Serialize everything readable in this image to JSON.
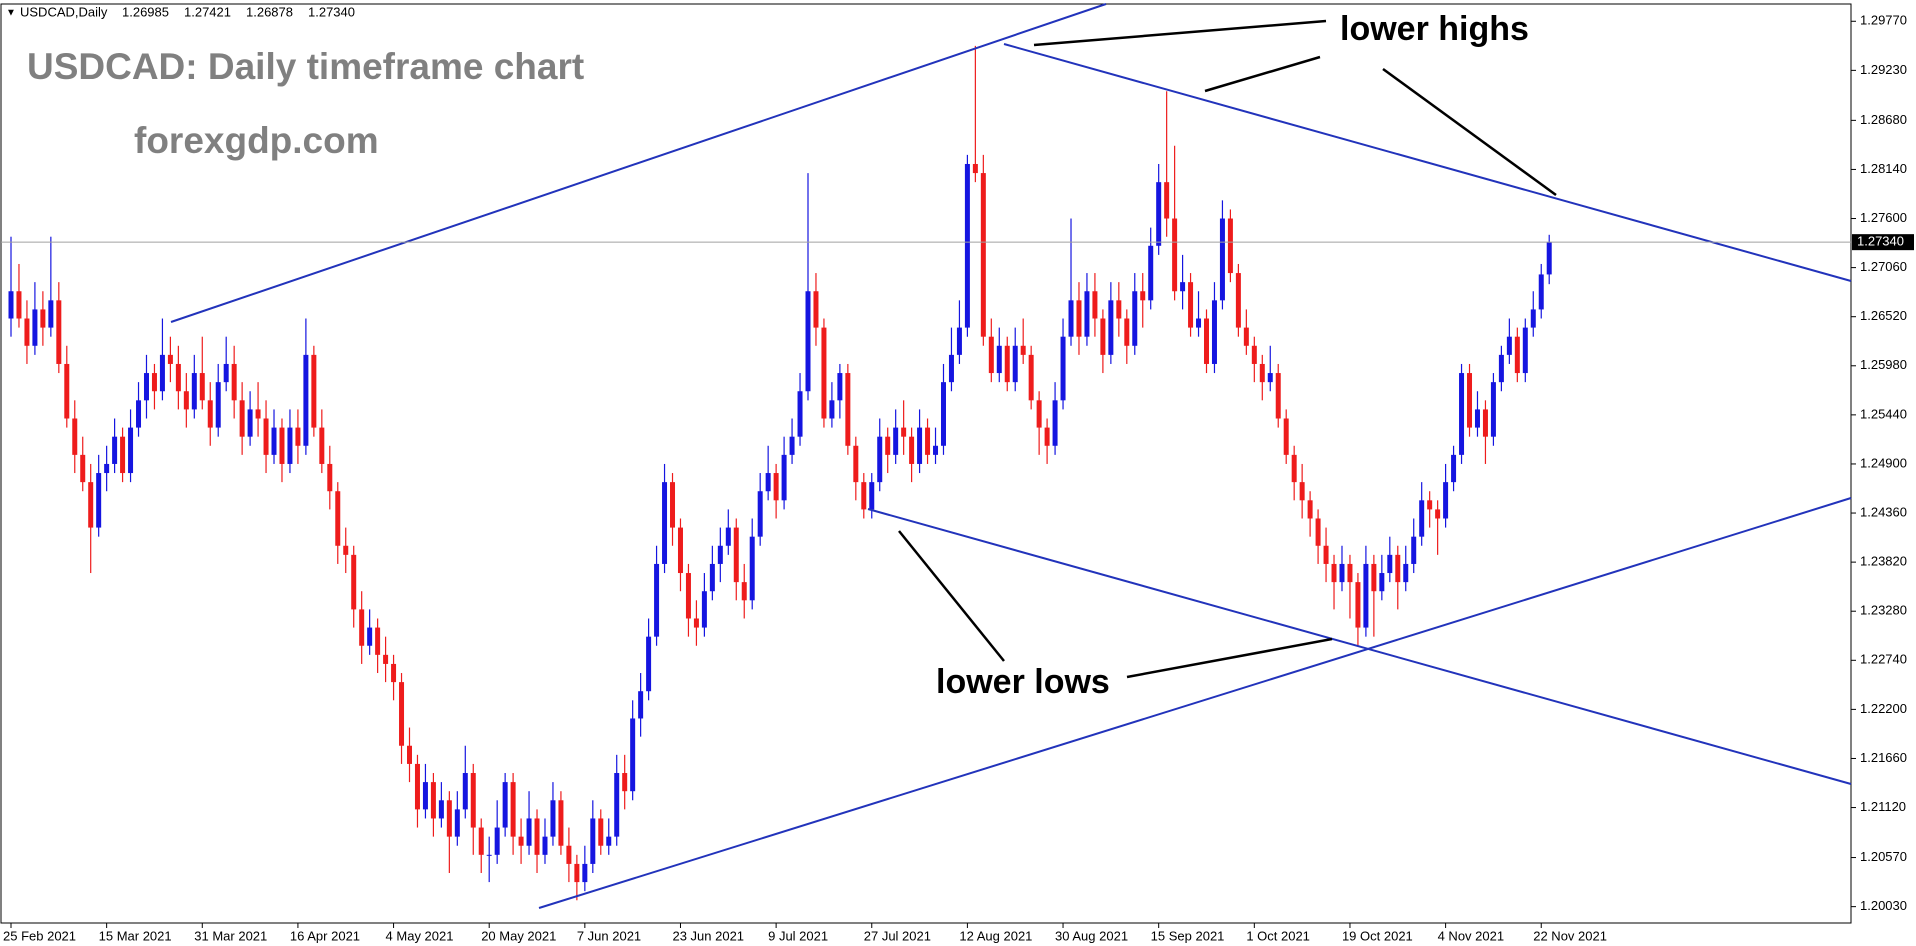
{
  "chart_data": {
    "type": "candlestick",
    "symbol": "USDCAD,Daily",
    "header_values": [
      {
        "value": 1.26985,
        "label": "1.26985"
      },
      {
        "value": 1.27421,
        "label": "1.27421"
      },
      {
        "value": 1.26878,
        "label": "1.26878"
      },
      {
        "value": 1.2734,
        "label": "1.27340"
      }
    ],
    "title": "USDCAD: Daily timeframe chart",
    "subtitle": "forexgdp.com",
    "annotations": [
      "lower highs",
      "lower lows"
    ],
    "up_color": "#1515e0",
    "down_color": "#ee1c1c",
    "last_price": {
      "value": 1.2734,
      "label": "1.27340"
    },
    "ylim": [
      1.1985,
      1.2996
    ],
    "yticks": [
      {
        "value": 1.2977,
        "label": "1.29770"
      },
      {
        "value": 1.2923,
        "label": "1.29230"
      },
      {
        "value": 1.2868,
        "label": "1.28680"
      },
      {
        "value": 1.2814,
        "label": "1.28140"
      },
      {
        "value": 1.276,
        "label": "1.27600"
      },
      {
        "value": 1.2706,
        "label": "1.27060"
      },
      {
        "value": 1.2652,
        "label": "1.26520"
      },
      {
        "value": 1.2598,
        "label": "1.25980"
      },
      {
        "value": 1.2544,
        "label": "1.25440"
      },
      {
        "value": 1.249,
        "label": "1.24900"
      },
      {
        "value": 1.2436,
        "label": "1.24360"
      },
      {
        "value": 1.2382,
        "label": "1.23820"
      },
      {
        "value": 1.2328,
        "label": "1.23280"
      },
      {
        "value": 1.2274,
        "label": "1.22740"
      },
      {
        "value": 1.222,
        "label": "1.22200"
      },
      {
        "value": 1.2166,
        "label": "1.21660"
      },
      {
        "value": 1.2112,
        "label": "1.21120"
      },
      {
        "value": 1.2057,
        "label": "1.20570"
      },
      {
        "value": 1.2003,
        "label": "1.20030"
      }
    ],
    "categories": [
      "25 Feb 2021",
      null,
      null,
      null,
      null,
      null,
      null,
      null,
      null,
      null,
      null,
      null,
      "15 Mar 2021",
      null,
      null,
      null,
      null,
      null,
      null,
      null,
      null,
      null,
      null,
      null,
      "31 Mar 2021",
      null,
      null,
      null,
      null,
      null,
      null,
      null,
      null,
      null,
      null,
      null,
      "16 Apr 2021",
      null,
      null,
      null,
      null,
      null,
      null,
      null,
      null,
      null,
      null,
      null,
      "4 May 2021",
      null,
      null,
      null,
      null,
      null,
      null,
      null,
      null,
      null,
      null,
      null,
      "20 May 2021",
      null,
      null,
      null,
      null,
      null,
      null,
      null,
      null,
      null,
      null,
      null,
      "7 Jun 2021",
      null,
      null,
      null,
      null,
      null,
      null,
      null,
      null,
      null,
      null,
      null,
      "23 Jun 2021",
      null,
      null,
      null,
      null,
      null,
      null,
      null,
      null,
      null,
      null,
      null,
      "9 Jul 2021",
      null,
      null,
      null,
      null,
      null,
      null,
      null,
      null,
      null,
      null,
      null,
      "27 Jul 2021",
      null,
      null,
      null,
      null,
      null,
      null,
      null,
      null,
      null,
      null,
      null,
      "12 Aug 2021",
      null,
      null,
      null,
      null,
      null,
      null,
      null,
      null,
      null,
      null,
      null,
      "30 Aug 2021",
      null,
      null,
      null,
      null,
      null,
      null,
      null,
      null,
      null,
      null,
      null,
      "15 Sep 2021",
      null,
      null,
      null,
      null,
      null,
      null,
      null,
      null,
      null,
      null,
      null,
      "1 Oct 2021",
      null,
      null,
      null,
      null,
      null,
      null,
      null,
      null,
      null,
      null,
      null,
      "19 Oct 2021",
      null,
      null,
      null,
      null,
      null,
      null,
      null,
      null,
      null,
      null,
      null,
      "4 Nov 2021",
      null,
      null,
      null,
      null,
      null,
      null,
      null,
      null,
      null,
      null,
      null,
      "22 Nov 2021",
      null
    ],
    "candles": [
      [
        1.265,
        1.274,
        1.263,
        1.268
      ],
      [
        1.268,
        1.271,
        1.264,
        1.265
      ],
      [
        1.265,
        1.267,
        1.26,
        1.262
      ],
      [
        1.262,
        1.269,
        1.261,
        1.266
      ],
      [
        1.266,
        1.268,
        1.262,
        1.264
      ],
      [
        1.264,
        1.274,
        1.263,
        1.267
      ],
      [
        1.267,
        1.269,
        1.259,
        1.26
      ],
      [
        1.26,
        1.262,
        1.253,
        1.254
      ],
      [
        1.254,
        1.256,
        1.248,
        1.25
      ],
      [
        1.25,
        1.252,
        1.246,
        1.247
      ],
      [
        1.247,
        1.249,
        1.237,
        1.242
      ],
      [
        1.242,
        1.25,
        1.241,
        1.248
      ],
      [
        1.248,
        1.251,
        1.246,
        1.249
      ],
      [
        1.249,
        1.254,
        1.248,
        1.252
      ],
      [
        1.252,
        1.253,
        1.247,
        1.248
      ],
      [
        1.248,
        1.255,
        1.247,
        1.253
      ],
      [
        1.253,
        1.258,
        1.252,
        1.256
      ],
      [
        1.256,
        1.261,
        1.254,
        1.259
      ],
      [
        1.259,
        1.26,
        1.255,
        1.257
      ],
      [
        1.257,
        1.265,
        1.256,
        1.261
      ],
      [
        1.261,
        1.263,
        1.258,
        1.26
      ],
      [
        1.26,
        1.262,
        1.255,
        1.257
      ],
      [
        1.257,
        1.259,
        1.253,
        1.255
      ],
      [
        1.255,
        1.261,
        1.254,
        1.259
      ],
      [
        1.259,
        1.263,
        1.255,
        1.256
      ],
      [
        1.256,
        1.258,
        1.251,
        1.253
      ],
      [
        1.253,
        1.26,
        1.252,
        1.258
      ],
      [
        1.258,
        1.263,
        1.257,
        1.26
      ],
      [
        1.26,
        1.262,
        1.254,
        1.256
      ],
      [
        1.256,
        1.258,
        1.25,
        1.252
      ],
      [
        1.252,
        1.257,
        1.251,
        1.255
      ],
      [
        1.255,
        1.258,
        1.252,
        1.254
      ],
      [
        1.254,
        1.256,
        1.248,
        1.25
      ],
      [
        1.25,
        1.255,
        1.249,
        1.253
      ],
      [
        1.253,
        1.254,
        1.247,
        1.249
      ],
      [
        1.249,
        1.255,
        1.248,
        1.253
      ],
      [
        1.253,
        1.255,
        1.249,
        1.251
      ],
      [
        1.251,
        1.265,
        1.25,
        1.261
      ],
      [
        1.261,
        1.262,
        1.252,
        1.253
      ],
      [
        1.253,
        1.255,
        1.248,
        1.249
      ],
      [
        1.249,
        1.251,
        1.244,
        1.246
      ],
      [
        1.246,
        1.247,
        1.238,
        1.24
      ],
      [
        1.24,
        1.242,
        1.237,
        1.239
      ],
      [
        1.239,
        1.24,
        1.231,
        1.233
      ],
      [
        1.233,
        1.235,
        1.227,
        1.229
      ],
      [
        1.229,
        1.233,
        1.228,
        1.231
      ],
      [
        1.231,
        1.232,
        1.226,
        1.228
      ],
      [
        1.228,
        1.23,
        1.225,
        1.227
      ],
      [
        1.227,
        1.228,
        1.223,
        1.225
      ],
      [
        1.225,
        1.226,
        1.216,
        1.218
      ],
      [
        1.218,
        1.22,
        1.214,
        1.216
      ],
      [
        1.216,
        1.217,
        1.209,
        1.211
      ],
      [
        1.211,
        1.216,
        1.21,
        1.214
      ],
      [
        1.214,
        1.215,
        1.208,
        1.21
      ],
      [
        1.21,
        1.214,
        1.209,
        1.212
      ],
      [
        1.212,
        1.213,
        1.204,
        1.208
      ],
      [
        1.208,
        1.213,
        1.207,
        1.211
      ],
      [
        1.211,
        1.218,
        1.21,
        1.215
      ],
      [
        1.215,
        1.216,
        1.206,
        1.209
      ],
      [
        1.209,
        1.21,
        1.204,
        1.206
      ],
      [
        1.206,
        1.208,
        1.203,
        1.206
      ],
      [
        1.206,
        1.212,
        1.205,
        1.209
      ],
      [
        1.209,
        1.215,
        1.208,
        1.214
      ],
      [
        1.214,
        1.215,
        1.206,
        1.208
      ],
      [
        1.208,
        1.21,
        1.205,
        1.207
      ],
      [
        1.207,
        1.213,
        1.206,
        1.21
      ],
      [
        1.21,
        1.211,
        1.204,
        1.206
      ],
      [
        1.206,
        1.21,
        1.205,
        1.208
      ],
      [
        1.208,
        1.214,
        1.207,
        1.212
      ],
      [
        1.212,
        1.213,
        1.206,
        1.207
      ],
      [
        1.207,
        1.209,
        1.203,
        1.205
      ],
      [
        1.205,
        1.206,
        1.201,
        1.203
      ],
      [
        1.203,
        1.207,
        1.202,
        1.205
      ],
      [
        1.205,
        1.212,
        1.204,
        1.21
      ],
      [
        1.21,
        1.211,
        1.206,
        1.207
      ],
      [
        1.207,
        1.21,
        1.206,
        1.208
      ],
      [
        1.208,
        1.217,
        1.207,
        1.215
      ],
      [
        1.215,
        1.217,
        1.211,
        1.213
      ],
      [
        1.213,
        1.223,
        1.212,
        1.221
      ],
      [
        1.221,
        1.226,
        1.219,
        1.224
      ],
      [
        1.224,
        1.232,
        1.223,
        1.23
      ],
      [
        1.23,
        1.24,
        1.229,
        1.238
      ],
      [
        1.238,
        1.249,
        1.237,
        1.247
      ],
      [
        1.247,
        1.248,
        1.24,
        1.242
      ],
      [
        1.242,
        1.243,
        1.235,
        1.237
      ],
      [
        1.237,
        1.238,
        1.23,
        1.232
      ],
      [
        1.232,
        1.234,
        1.229,
        1.231
      ],
      [
        1.231,
        1.237,
        1.23,
        1.235
      ],
      [
        1.235,
        1.24,
        1.234,
        1.238
      ],
      [
        1.238,
        1.242,
        1.236,
        1.24
      ],
      [
        1.24,
        1.244,
        1.239,
        1.242
      ],
      [
        1.242,
        1.243,
        1.234,
        1.236
      ],
      [
        1.236,
        1.238,
        1.232,
        1.234
      ],
      [
        1.234,
        1.243,
        1.233,
        1.241
      ],
      [
        1.241,
        1.248,
        1.24,
        1.246
      ],
      [
        1.246,
        1.251,
        1.245,
        1.248
      ],
      [
        1.248,
        1.249,
        1.243,
        1.245
      ],
      [
        1.245,
        1.252,
        1.244,
        1.25
      ],
      [
        1.25,
        1.254,
        1.249,
        1.252
      ],
      [
        1.252,
        1.259,
        1.251,
        1.257
      ],
      [
        1.257,
        1.281,
        1.256,
        1.268
      ],
      [
        1.268,
        1.27,
        1.262,
        1.264
      ],
      [
        1.264,
        1.265,
        1.253,
        1.254
      ],
      [
        1.254,
        1.258,
        1.253,
        1.256
      ],
      [
        1.256,
        1.26,
        1.254,
        1.259
      ],
      [
        1.259,
        1.26,
        1.25,
        1.251
      ],
      [
        1.251,
        1.252,
        1.245,
        1.247
      ],
      [
        1.247,
        1.248,
        1.243,
        1.244
      ],
      [
        1.244,
        1.248,
        1.243,
        1.247
      ],
      [
        1.247,
        1.254,
        1.246,
        1.252
      ],
      [
        1.252,
        1.253,
        1.248,
        1.25
      ],
      [
        1.25,
        1.255,
        1.249,
        1.253
      ],
      [
        1.253,
        1.256,
        1.25,
        1.252
      ],
      [
        1.252,
        1.253,
        1.247,
        1.249
      ],
      [
        1.249,
        1.255,
        1.248,
        1.253
      ],
      [
        1.253,
        1.254,
        1.249,
        1.25
      ],
      [
        1.25,
        1.253,
        1.249,
        1.251
      ],
      [
        1.251,
        1.26,
        1.25,
        1.258
      ],
      [
        1.258,
        1.264,
        1.257,
        1.261
      ],
      [
        1.261,
        1.267,
        1.26,
        1.264
      ],
      [
        1.264,
        1.283,
        1.263,
        1.282
      ],
      [
        1.282,
        1.295,
        1.28,
        1.281
      ],
      [
        1.281,
        1.283,
        1.262,
        1.263
      ],
      [
        1.263,
        1.265,
        1.258,
        1.259
      ],
      [
        1.259,
        1.264,
        1.258,
        1.262
      ],
      [
        1.262,
        1.263,
        1.257,
        1.258
      ],
      [
        1.258,
        1.264,
        1.257,
        1.262
      ],
      [
        1.262,
        1.265,
        1.26,
        1.261
      ],
      [
        1.261,
        1.262,
        1.255,
        1.256
      ],
      [
        1.256,
        1.257,
        1.25,
        1.253
      ],
      [
        1.253,
        1.254,
        1.249,
        1.251
      ],
      [
        1.251,
        1.258,
        1.25,
        1.256
      ],
      [
        1.256,
        1.265,
        1.255,
        1.263
      ],
      [
        1.263,
        1.276,
        1.262,
        1.267
      ],
      [
        1.267,
        1.269,
        1.261,
        1.263
      ],
      [
        1.263,
        1.27,
        1.262,
        1.268
      ],
      [
        1.268,
        1.27,
        1.263,
        1.265
      ],
      [
        1.265,
        1.266,
        1.259,
        1.261
      ],
      [
        1.261,
        1.269,
        1.26,
        1.267
      ],
      [
        1.267,
        1.269,
        1.263,
        1.265
      ],
      [
        1.265,
        1.266,
        1.26,
        1.262
      ],
      [
        1.262,
        1.27,
        1.261,
        1.268
      ],
      [
        1.268,
        1.27,
        1.264,
        1.267
      ],
      [
        1.267,
        1.275,
        1.266,
        1.273
      ],
      [
        1.273,
        1.282,
        1.272,
        1.28
      ],
      [
        1.28,
        1.29,
        1.274,
        1.276
      ],
      [
        1.276,
        1.284,
        1.267,
        1.268
      ],
      [
        1.268,
        1.272,
        1.266,
        1.269
      ],
      [
        1.269,
        1.27,
        1.263,
        1.264
      ],
      [
        1.264,
        1.268,
        1.263,
        1.265
      ],
      [
        1.265,
        1.266,
        1.259,
        1.26
      ],
      [
        1.26,
        1.269,
        1.259,
        1.267
      ],
      [
        1.267,
        1.278,
        1.266,
        1.276
      ],
      [
        1.276,
        1.277,
        1.269,
        1.27
      ],
      [
        1.27,
        1.271,
        1.263,
        1.264
      ],
      [
        1.264,
        1.266,
        1.261,
        1.262
      ],
      [
        1.262,
        1.263,
        1.258,
        1.26
      ],
      [
        1.26,
        1.261,
        1.256,
        1.258
      ],
      [
        1.258,
        1.262,
        1.257,
        1.259
      ],
      [
        1.259,
        1.26,
        1.253,
        1.254
      ],
      [
        1.254,
        1.255,
        1.249,
        1.25
      ],
      [
        1.25,
        1.251,
        1.245,
        1.247
      ],
      [
        1.247,
        1.249,
        1.243,
        1.245
      ],
      [
        1.245,
        1.246,
        1.241,
        1.243
      ],
      [
        1.243,
        1.244,
        1.238,
        1.24
      ],
      [
        1.24,
        1.242,
        1.236,
        1.238
      ],
      [
        1.238,
        1.239,
        1.233,
        1.236
      ],
      [
        1.236,
        1.24,
        1.235,
        1.238
      ],
      [
        1.238,
        1.239,
        1.232,
        1.236
      ],
      [
        1.236,
        1.237,
        1.229,
        1.231
      ],
      [
        1.231,
        1.24,
        1.23,
        1.238
      ],
      [
        1.238,
        1.239,
        1.23,
        1.235
      ],
      [
        1.235,
        1.239,
        1.234,
        1.237
      ],
      [
        1.237,
        1.241,
        1.236,
        1.239
      ],
      [
        1.239,
        1.24,
        1.233,
        1.236
      ],
      [
        1.236,
        1.24,
        1.235,
        1.238
      ],
      [
        1.238,
        1.243,
        1.237,
        1.241
      ],
      [
        1.241,
        1.247,
        1.24,
        1.245
      ],
      [
        1.245,
        1.246,
        1.242,
        1.244
      ],
      [
        1.244,
        1.245,
        1.239,
        1.243
      ],
      [
        1.243,
        1.249,
        1.242,
        1.247
      ],
      [
        1.247,
        1.251,
        1.246,
        1.25
      ],
      [
        1.25,
        1.26,
        1.249,
        1.259
      ],
      [
        1.259,
        1.26,
        1.252,
        1.253
      ],
      [
        1.253,
        1.257,
        1.252,
        1.255
      ],
      [
        1.255,
        1.256,
        1.249,
        1.252
      ],
      [
        1.252,
        1.259,
        1.251,
        1.258
      ],
      [
        1.258,
        1.262,
        1.257,
        1.261
      ],
      [
        1.261,
        1.265,
        1.26,
        1.263
      ],
      [
        1.263,
        1.264,
        1.258,
        1.259
      ],
      [
        1.259,
        1.265,
        1.258,
        1.264
      ],
      [
        1.264,
        1.268,
        1.263,
        1.266
      ],
      [
        1.266,
        1.271,
        1.265,
        1.26985
      ],
      [
        1.26985,
        1.27421,
        1.26878,
        1.2734
      ]
    ]
  }
}
